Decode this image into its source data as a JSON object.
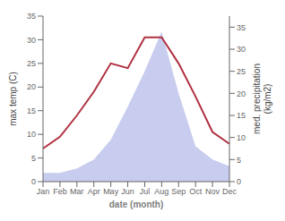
{
  "chart_data": {
    "type": "line",
    "xlabel": "date (month)",
    "ylabel": "max temp (C)",
    "y2label": "med. precipitation\n(kg/m2)",
    "categories": [
      "Jan",
      "Feb",
      "Mar",
      "Apr",
      "May",
      "Jun",
      "Jul",
      "Aug",
      "Sep",
      "Oct",
      "Nov",
      "Dec"
    ],
    "series": [
      {
        "type": "area",
        "axis": "y2",
        "color": "#c8ccee",
        "values": [
          2,
          2,
          3,
          5,
          9.5,
          17,
          25,
          34,
          20,
          8,
          5,
          3.5
        ]
      },
      {
        "type": "line",
        "color": "#b03040",
        "values": [
          7,
          9.5,
          14,
          19,
          25,
          24,
          30.5,
          30.5,
          25,
          18,
          10.5,
          8
        ]
      }
    ],
    "ylim": [
      0,
      35
    ],
    "yticks": [
      0,
      5,
      10,
      15,
      20,
      25,
      30,
      35
    ],
    "y2lim": [
      0,
      37.5
    ],
    "y2ticks": [
      0,
      5,
      10,
      15,
      20,
      25,
      30,
      35
    ],
    "grid": false
  }
}
